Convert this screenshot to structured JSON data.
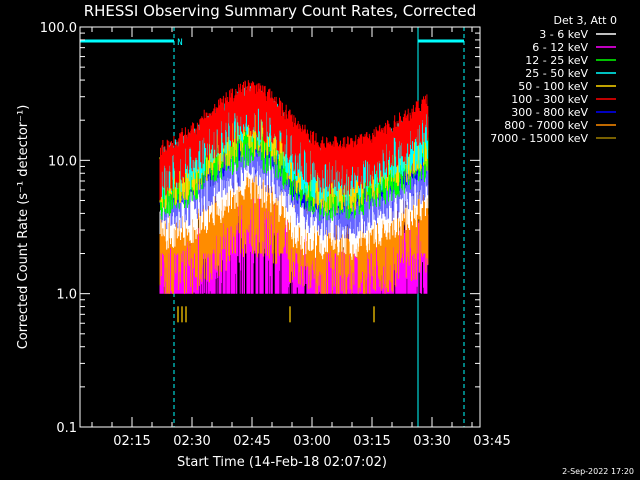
{
  "chart_data": {
    "type": "line",
    "title": "RHESSI Observing Summary Count Rates, Corrected",
    "xlabel": "Start Time (14-Feb-18 02:07:02)",
    "ylabel": "Corrected Count Rate (s⁻¹ detector⁻¹)",
    "yscale": "log",
    "ylim": [
      0.1,
      100.0
    ],
    "y_ticks": [
      "0.1",
      "1.0",
      "10.0",
      "100.0"
    ],
    "xlim_minutes": [
      2.0,
      102.0
    ],
    "x_ticks": [
      {
        "label": "02:15",
        "minute": 15
      },
      {
        "label": "02:30",
        "minute": 30
      },
      {
        "label": "02:45",
        "minute": 45
      },
      {
        "label": "03:00",
        "minute": 60
      },
      {
        "label": "03:15",
        "minute": 75
      },
      {
        "label": "03:30",
        "minute": 90
      },
      {
        "label": "03:45",
        "minute": 105
      }
    ],
    "legend_title": "Det 3, Att 0",
    "legend_position": "top-right",
    "series": [
      {
        "name": "3 - 6 keV",
        "color": "#ffffff",
        "x": [
          22,
          30,
          38,
          44,
          50,
          56,
          62,
          70,
          78,
          85,
          89
        ],
        "y": [
          4.0,
          4.5,
          7,
          10,
          8,
          4,
          3.5,
          3.5,
          4.5,
          6,
          7
        ]
      },
      {
        "name": "6 - 12 keV",
        "color": "#ff00ff",
        "x": [
          22,
          30,
          38,
          44,
          50,
          56,
          62,
          70,
          78,
          85,
          89
        ],
        "y": [
          1.8,
          2.2,
          4,
          5.5,
          4.5,
          2.5,
          1.8,
          1.8,
          2.2,
          2.8,
          3.5
        ]
      },
      {
        "name": "12 - 25 keV",
        "color": "#00ff00",
        "x": [
          22,
          30,
          38,
          44,
          50,
          56,
          62,
          70,
          78,
          85,
          89
        ],
        "y": [
          7,
          9,
          14,
          18,
          15,
          9,
          7,
          7,
          9,
          12,
          14
        ]
      },
      {
        "name": "25 - 50 keV",
        "color": "#00ffff",
        "x": [
          22,
          30,
          38,
          44,
          50,
          56,
          62,
          70,
          78,
          85,
          89
        ],
        "y": [
          9,
          12,
          20,
          27,
          22,
          12,
          9,
          9,
          12,
          16,
          19
        ]
      },
      {
        "name": "50 - 100 keV",
        "color": "#ffd700",
        "x": [
          22,
          30,
          38,
          44,
          50,
          56,
          62,
          70,
          78,
          85,
          89
        ],
        "y": [
          8,
          10,
          17,
          22,
          19,
          11,
          8,
          8,
          11,
          14,
          16
        ]
      },
      {
        "name": "100 - 300 keV",
        "color": "#ff0000",
        "x": [
          22,
          30,
          38,
          44,
          50,
          56,
          62,
          70,
          78,
          85,
          89
        ],
        "y": [
          10,
          14,
          23,
          30,
          25,
          15,
          11,
          11,
          14,
          19,
          24
        ]
      },
      {
        "name": "300 - 800 keV",
        "color": "#0000ff",
        "x": [
          22,
          30,
          38,
          44,
          50,
          56,
          62,
          70,
          78,
          85,
          89
        ],
        "y": [
          5.5,
          6.5,
          10,
          13,
          11,
          6.5,
          5,
          5,
          6.5,
          8,
          10
        ]
      },
      {
        "name": "800 - 7000 keV",
        "color": "#ff8c00",
        "x": [
          22,
          30,
          38,
          44,
          50,
          56,
          62,
          70,
          78,
          85,
          89
        ],
        "y": [
          3,
          3.3,
          5,
          7,
          6,
          3.5,
          2.8,
          2.8,
          3.3,
          4.2,
          5
        ]
      },
      {
        "name": "7000 - 15000 keV",
        "color": "#a08000",
        "x": [
          26.5,
          27.5,
          28.5,
          54.5,
          75.5
        ],
        "y": [
          0.7,
          0.7,
          0.7,
          0.7,
          0.7
        ]
      }
    ],
    "annotations": [
      {
        "text": "N",
        "color": "#00ffff",
        "minute": 27
      }
    ],
    "vertical_lines": [
      {
        "minute": 2,
        "style": "solid",
        "color": "#00ffff"
      },
      {
        "minute": 25.5,
        "style": "dashed",
        "color": "#00ffff"
      },
      {
        "minute": 86.5,
        "style": "solid",
        "color": "#00ffff"
      },
      {
        "minute": 98,
        "style": "dashed",
        "color": "#00ffff"
      }
    ],
    "night_bars": [
      {
        "start": 2,
        "end": 25.5,
        "color": "#00ffff"
      },
      {
        "start": 86.5,
        "end": 98,
        "color": "#00ffff"
      }
    ]
  },
  "timestamp": "2-Sep-2022 17:20"
}
